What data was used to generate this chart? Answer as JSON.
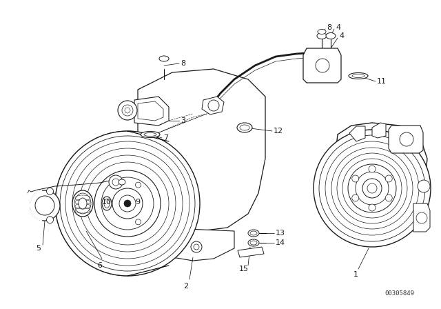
{
  "bg_color": "#ffffff",
  "line_color": "#1a1a1a",
  "watermark": "00305849",
  "figsize": [
    6.4,
    4.48
  ],
  "dpi": 100
}
